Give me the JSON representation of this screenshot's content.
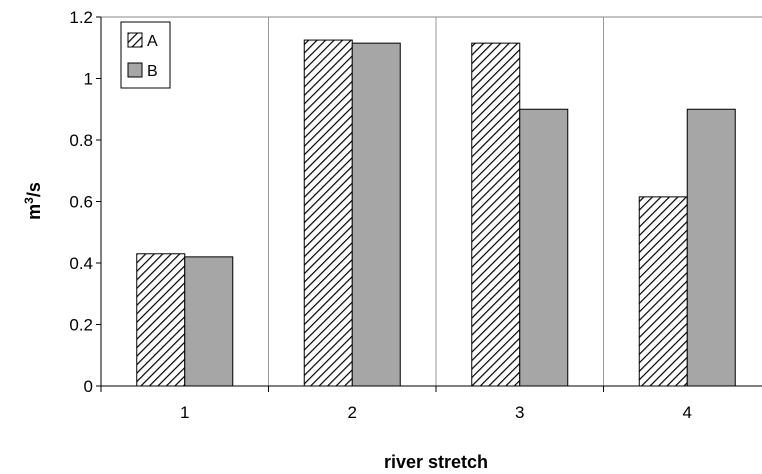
{
  "chart_data": {
    "type": "bar",
    "categories": [
      "1",
      "2",
      "3",
      "4"
    ],
    "series": [
      {
        "name": "A",
        "values": [
          0.43,
          1.125,
          1.115,
          0.615
        ],
        "pattern": "hatched",
        "color": "#000000"
      },
      {
        "name": "B",
        "values": [
          0.42,
          1.115,
          0.9,
          0.9
        ],
        "pattern": "solid",
        "color": "#a6a6a6"
      }
    ],
    "xlabel": "river stretch",
    "ylabel": {
      "base": "m",
      "sup": "3",
      "rest": "/s"
    },
    "ylim": [
      0,
      1.2
    ],
    "yticks": [
      "0",
      "0.2",
      "0.4",
      "0.6",
      "0.8",
      "1",
      "1.2"
    ],
    "grid": "vertical",
    "legend": "top-left"
  }
}
